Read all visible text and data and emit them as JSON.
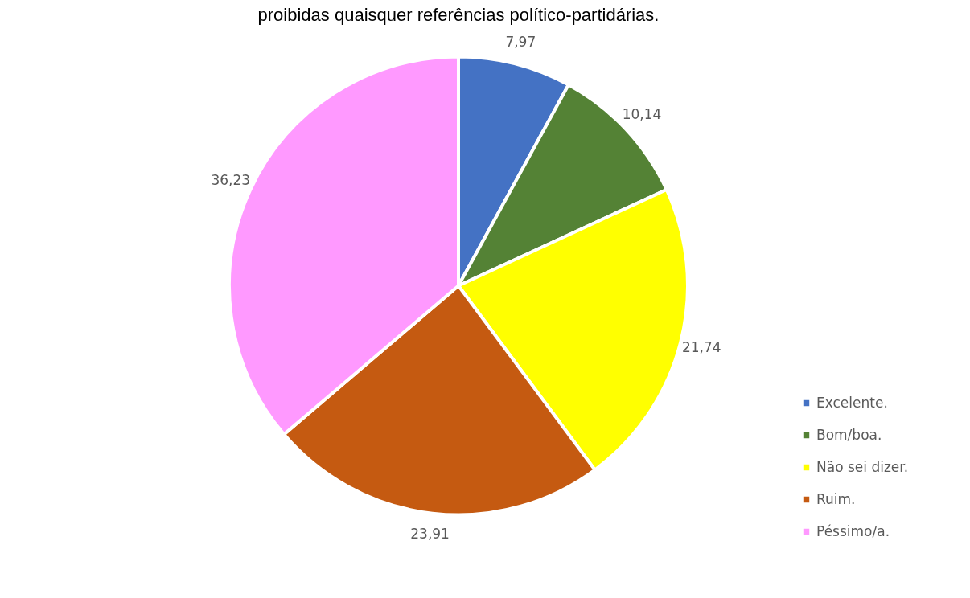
{
  "chart_data": {
    "type": "pie",
    "title": "proibidas quaisquer referências político-partidárias.",
    "categories": [
      "Excelente.",
      "Bom/boa.",
      "Não sei dizer.",
      "Ruim.",
      "Péssimo/a."
    ],
    "values": [
      7.97,
      10.14,
      21.74,
      23.91,
      36.23
    ],
    "value_labels": [
      "7,97",
      "10,14",
      "21,74",
      "23,91",
      "36,23"
    ],
    "colors": [
      "#4472c4",
      "#548235",
      "#ffff00",
      "#c55a11",
      "#ff99ff"
    ],
    "legend": "bottom right"
  }
}
